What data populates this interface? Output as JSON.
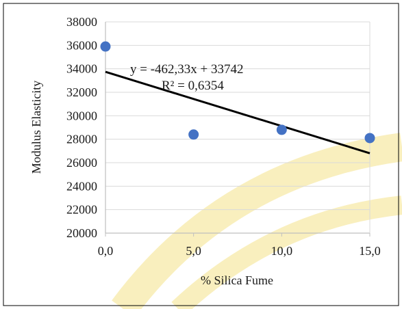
{
  "chart_data": {
    "type": "scatter",
    "title": "",
    "xlabel": "% Silica Fume",
    "ylabel": "Modulus Elasticity",
    "xlim": [
      0,
      15
    ],
    "ylim": [
      20000,
      38000
    ],
    "x_ticks": [
      "0,0",
      "5,0",
      "10,0",
      "15,0"
    ],
    "y_ticks": [
      "20000",
      "22000",
      "24000",
      "26000",
      "28000",
      "30000",
      "32000",
      "34000",
      "36000",
      "38000"
    ],
    "grid": "horizontal",
    "legend": "none",
    "series": [
      {
        "points": [
          {
            "x": 0,
            "y": 35900
          },
          {
            "x": 5,
            "y": 28400
          },
          {
            "x": 10,
            "y": 28800
          },
          {
            "x": 15,
            "y": 28100
          }
        ],
        "color": "#4472c4"
      }
    ],
    "trendline": {
      "kind": "linear",
      "slope": -462.33,
      "intercept": 33742,
      "equation": "y = -462,33x + 33742",
      "r_squared": "R² = 0,6354",
      "color": "#000000"
    },
    "colors": {
      "gridline": "#d9d9d9",
      "axis": "#bfbfbf",
      "border": "#000000",
      "background": "#ffffff",
      "watermark": "#e8c200"
    }
  }
}
